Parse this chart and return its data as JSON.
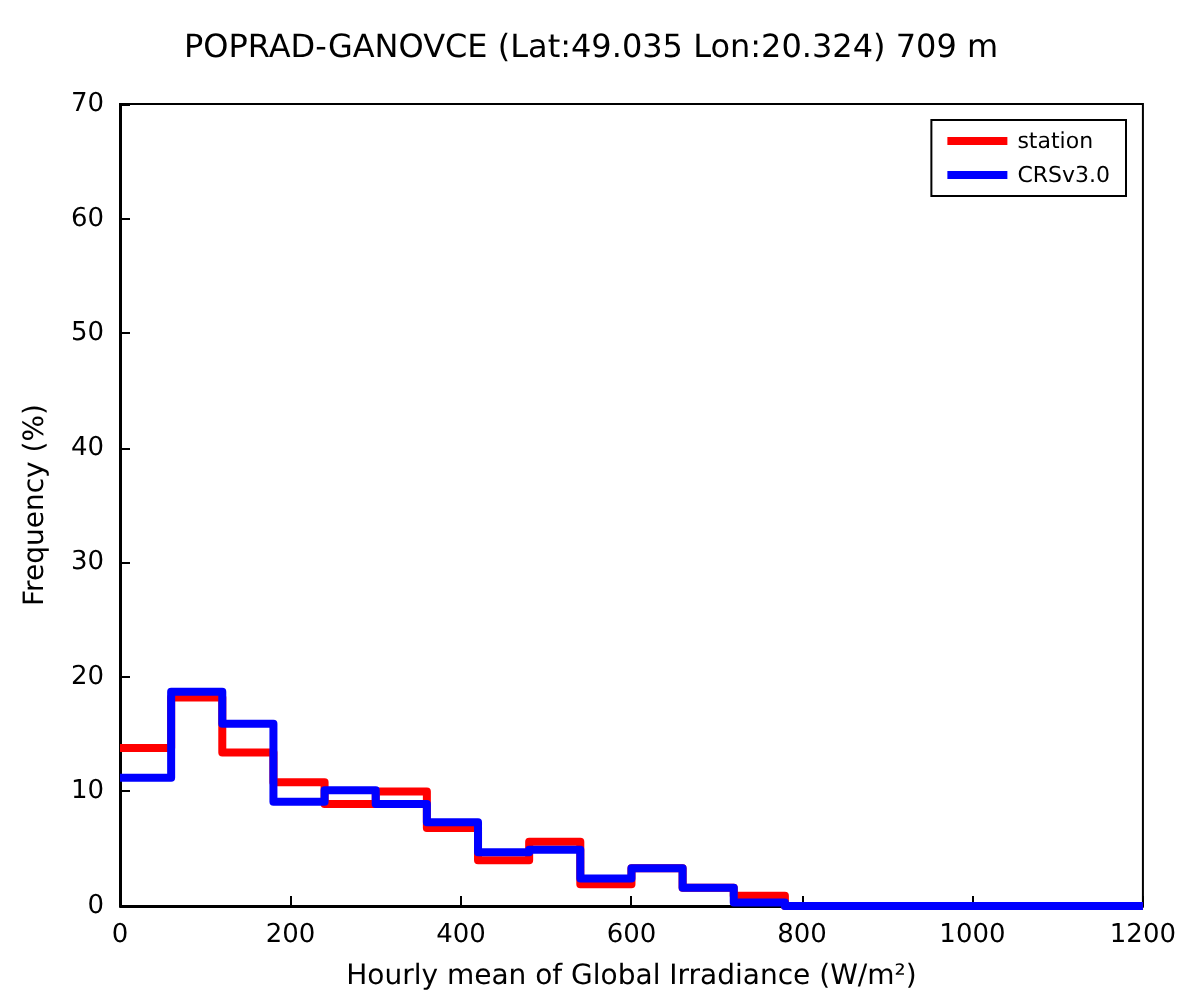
{
  "chart_data": {
    "type": "histogram",
    "title": "POPRAD-GANOVCE (Lat:49.035 Lon:20.324) 709 m",
    "xlabel": "Hourly mean of Global Irradiance (W/m²)",
    "ylabel": "Frequency (%)",
    "bins": [
      0,
      60,
      120,
      180,
      240,
      300,
      360,
      420,
      480,
      540,
      600,
      660,
      720,
      780,
      840,
      900,
      960,
      1020,
      1080,
      1140,
      1200
    ],
    "series": [
      {
        "name": "station",
        "color": "#ff0000",
        "values": [
          13.8,
          18.2,
          13.4,
          10.8,
          8.9,
          10.0,
          6.8,
          4.0,
          5.6,
          1.9,
          3.3,
          1.6,
          0.9,
          0,
          0,
          0,
          0,
          0,
          0,
          0
        ]
      },
      {
        "name": "CRSv3.0",
        "color": "#0000ff",
        "values": [
          11.2,
          18.7,
          15.9,
          9.1,
          10.1,
          8.9,
          7.3,
          4.7,
          4.9,
          2.4,
          3.3,
          1.6,
          0.3,
          0,
          0,
          0,
          0,
          0,
          0,
          0
        ]
      }
    ],
    "xlim": [
      0,
      1200
    ],
    "xticks": [
      0,
      200,
      400,
      600,
      800,
      1000,
      1200
    ],
    "ylim": [
      0,
      70
    ],
    "yticks": [
      0,
      10,
      20,
      30,
      40,
      50,
      60,
      70
    ],
    "legend": "top right",
    "grid": false,
    "line_style": "solid"
  }
}
